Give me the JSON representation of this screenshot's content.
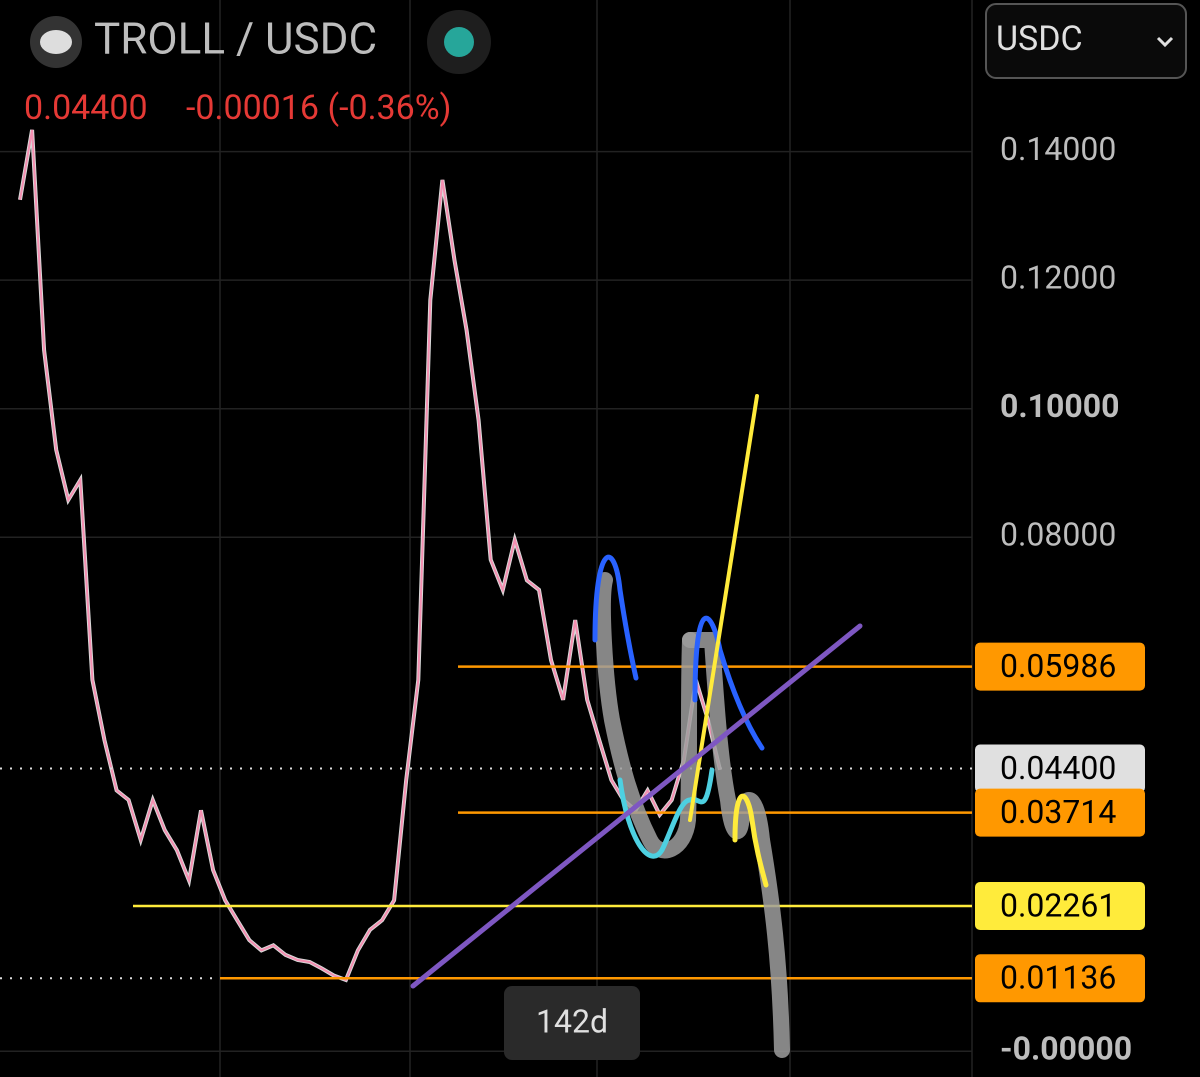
{
  "header": {
    "pair": "TROLL / USDC",
    "price": "0.04400",
    "change": "-0.00016 (-0.36%)",
    "quote_select": "USDC"
  },
  "chart_data": {
    "type": "line",
    "color": "#f48fb1",
    "values": [
      0.1325,
      0.1434,
      0.1091,
      0.0936,
      0.0858,
      0.0889,
      0.0578,
      0.0484,
      0.0406,
      0.0391,
      0.0329,
      0.0391,
      0.0344,
      0.0313,
      0.0266,
      0.0375,
      0.0282,
      0.0235,
      0.0204,
      0.0173,
      0.0157,
      0.0165,
      0.015,
      0.0142,
      0.0139,
      0.0129,
      0.0118,
      0.0111,
      0.0157,
      0.0189,
      0.0204,
      0.0235,
      0.0422,
      0.0578,
      0.1169,
      0.1356,
      0.1231,
      0.1122,
      0.0982,
      0.0765,
      0.0718,
      0.0796,
      0.0733,
      0.0718,
      0.0609,
      0.0547,
      0.0671,
      0.0547,
      0.0484,
      0.0422,
      0.0391,
      0.0375,
      0.0406,
      0.0368,
      0.0391,
      0.0453,
      0.0578,
      0.0516,
      0.0438
    ],
    "ylim": [
      -0.004,
      0.1636
    ],
    "yticks": [
      {
        "value": 0.14,
        "label": "0.14000"
      },
      {
        "value": 0.12,
        "label": "0.12000"
      },
      {
        "value": 0.1,
        "label": "0.10000"
      },
      {
        "value": 0.08,
        "label": "0.08000"
      },
      {
        "value": 0,
        "label": "-0.00000"
      }
    ],
    "grid": true,
    "current_price": {
      "value": 0.044,
      "label": "0.04400"
    },
    "levels": [
      {
        "value": 0.05986,
        "color": "#ff9800"
      },
      {
        "value": 0.03714,
        "color": "#ff9800"
      },
      {
        "value": 0.02261,
        "color": "#ffeb3b"
      },
      {
        "value": 0.01136,
        "color": "#ff9800"
      }
    ],
    "range_label": "142d"
  }
}
